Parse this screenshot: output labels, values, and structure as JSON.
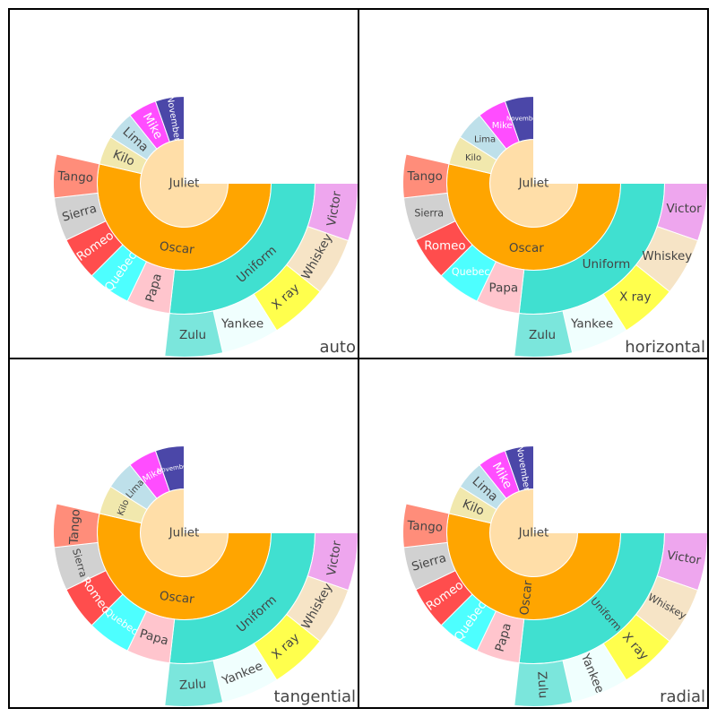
{
  "chart_data": {
    "type": "sunburst",
    "start_angle_deg": 0,
    "end_angle_deg": 270,
    "direction": "clockwise-from-east",
    "colors": {
      "Juliet": "#ffdea8",
      "Oscar": "#ffa500",
      "Uniform": "#40e0d0",
      "November": "#4b47a8",
      "Mike": "#ff4dff",
      "Lima": "#bee0ea",
      "Kilo": "#f1e8ad",
      "Victor": "#eea6ee",
      "Whiskey": "#f6e4c6",
      "X ray": "#ffff4d",
      "Yankee": "#f0fffe",
      "Zulu": "#7be6dc",
      "Papa": "#ffc5cd",
      "Quebec": "#4dffff",
      "Romeo": "#ff4d4d",
      "Sierra": "#d1d1d1",
      "Tango": "#ff8d7a"
    },
    "light_text": [
      "November",
      "Mike",
      "Quebec",
      "Romeo"
    ],
    "hierarchy": {
      "label": "Juliet",
      "children": [
        {
          "label": "Oscar",
          "children": [
            {
              "label": "Uniform",
              "children": [
                {
                  "label": "Victor",
                  "value": 1
                },
                {
                  "label": "Whiskey",
                  "value": 1
                },
                {
                  "label": "X ray",
                  "value": 1
                },
                {
                  "label": "Yankee",
                  "value": 1
                },
                {
                  "label": "Zulu",
                  "value": 1
                }
              ]
            },
            {
              "label": "Papa",
              "value": 1
            },
            {
              "label": "Quebec",
              "value": 1
            },
            {
              "label": "Romeo",
              "value": 1
            },
            {
              "label": "Sierra",
              "value": 1
            },
            {
              "label": "Tango",
              "value": 1
            }
          ]
        },
        {
          "label": "Kilo",
          "value": 1
        },
        {
          "label": "Lima",
          "value": 1
        },
        {
          "label": "Mike",
          "value": 1
        },
        {
          "label": "November",
          "value": 1
        }
      ]
    },
    "panels": [
      {
        "title": "auto",
        "insidetextorientation": "auto"
      },
      {
        "title": "horizontal",
        "insidetextorientation": "horizontal"
      },
      {
        "title": "tangential",
        "insidetextorientation": "tangential"
      },
      {
        "title": "radial",
        "insidetextorientation": "radial"
      }
    ]
  }
}
